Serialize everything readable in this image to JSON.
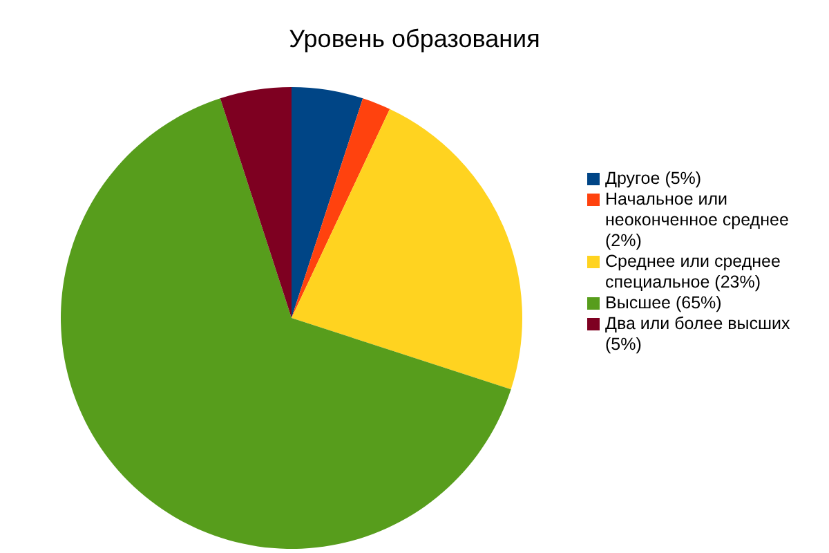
{
  "chart_data": {
    "type": "pie",
    "title": "Уровень образования",
    "categories": [
      "Другое (5%)",
      "Начальное или неоконченное среднее (2%)",
      "Среднее или среднее специальное (23%)",
      "Высшее (65%)",
      "Два или более высших (5%)"
    ],
    "values": [
      5,
      2,
      23,
      65,
      5
    ],
    "colors": [
      "#004586",
      "#ff420e",
      "#ffd320",
      "#579d1c",
      "#7e0021"
    ],
    "legend": "right"
  }
}
